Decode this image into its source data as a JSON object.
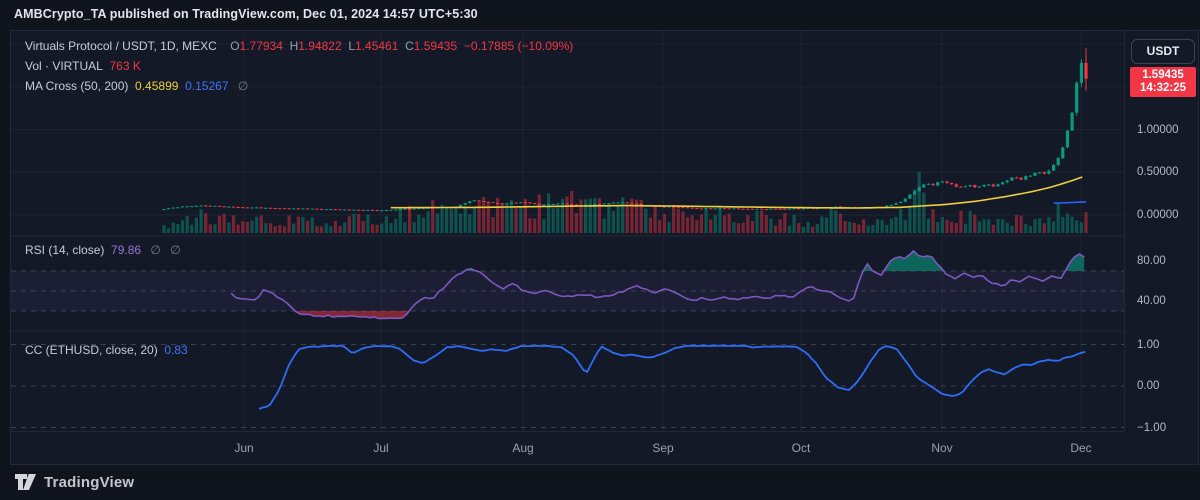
{
  "header": {
    "attribution": "AMBCrypto_TA published on TradingView.com, Dec 01, 2024 14:57 UTC+5:30"
  },
  "footer": {
    "brand": "TradingView"
  },
  "chart": {
    "legend_main": {
      "title": "Virtuals Protocol / USDT, 1D, MEXC",
      "o_label": "O",
      "o_value": "1.77934",
      "h_label": "H",
      "h_value": "1.94822",
      "l_label": "L",
      "l_value": "1.45461",
      "c_label": "C",
      "c_value": "1.59435",
      "change": "−0.17885 (−10.09%)"
    },
    "legend_vol": {
      "label": "Vol · VIRTUAL",
      "value": "763 K"
    },
    "legend_ma": {
      "label": "MA Cross (50, 200)",
      "ma50": "0.45899",
      "ma200": "0.15267",
      "eye": "∅"
    },
    "legend_rsi": {
      "label": "RSI (14, close)",
      "value": "79.86",
      "eye1": "∅",
      "eye2": "∅"
    },
    "legend_cc": {
      "label": "CC (ETHUSD, close, 20)",
      "value": "0.83"
    },
    "price_axis": {
      "currency_button": "USDT",
      "last_price": "1.59435",
      "countdown": "14:32:25"
    },
    "colors": {
      "up": "#089981",
      "down": "#f23645",
      "ma50": "#efce3d",
      "ma200": "#2962ff",
      "rsi": "#7e57c2",
      "cc": "#2e6df6",
      "grid": "rgba(151,158,179,0.08)",
      "dash": "rgba(150,155,170,0.55)"
    }
  },
  "chart_data": [
    {
      "type": "candlestick",
      "title": "Virtuals Protocol / USDT, 1D, MEXC",
      "ohlc_last": {
        "open": 1.77934,
        "high": 1.94822,
        "low": 1.45461,
        "close": 1.59435
      },
      "change": -0.17885,
      "change_pct": -10.09,
      "volume_last": "763 K",
      "ma50_last": 0.45899,
      "ma200_last": 0.15267,
      "ylim": [
        0,
        2.35
      ],
      "y_ticks": [
        {
          "v": 1.0,
          "label": "1.00000"
        },
        {
          "v": 0.5,
          "label": "0.50000"
        },
        {
          "v": 0.0,
          "label": "0.00000"
        }
      ],
      "grid_levels": [
        0.0,
        0.5,
        1.0,
        1.5,
        2.0
      ],
      "x_months": [
        {
          "label": "Jun",
          "t": 0.0868
        },
        {
          "label": "Jul",
          "t": 0.2354
        },
        {
          "label": "Aug",
          "t": 0.3894
        },
        {
          "label": "Sep",
          "t": 0.5412
        },
        {
          "label": "Oct",
          "t": 0.6909
        },
        {
          "label": "Nov",
          "t": 0.8438
        },
        {
          "label": "Dec",
          "t": 0.9946
        }
      ],
      "close_keyframes": [
        [
          0,
          0.07
        ],
        [
          0.02,
          0.1
        ],
        [
          0.04,
          0.11
        ],
        [
          0.087,
          0.09
        ],
        [
          0.12,
          0.08
        ],
        [
          0.149,
          0.075
        ],
        [
          0.192,
          0.065
        ],
        [
          0.235,
          0.055
        ],
        [
          0.26,
          0.07
        ],
        [
          0.279,
          0.08
        ],
        [
          0.3,
          0.09
        ],
        [
          0.317,
          0.1
        ],
        [
          0.333,
          0.17
        ],
        [
          0.346,
          0.16
        ],
        [
          0.366,
          0.13
        ],
        [
          0.387,
          0.15
        ],
        [
          0.409,
          0.12
        ],
        [
          0.431,
          0.14
        ],
        [
          0.447,
          0.11
        ],
        [
          0.474,
          0.13
        ],
        [
          0.496,
          0.15
        ],
        [
          0.517,
          0.12
        ],
        [
          0.541,
          0.1
        ],
        [
          0.561,
          0.09
        ],
        [
          0.582,
          0.075
        ],
        [
          0.604,
          0.08
        ],
        [
          0.626,
          0.075
        ],
        [
          0.648,
          0.07
        ],
        [
          0.669,
          0.072
        ],
        [
          0.691,
          0.078
        ],
        [
          0.713,
          0.085
        ],
        [
          0.729,
          0.1
        ],
        [
          0.745,
          0.09
        ],
        [
          0.761,
          0.08
        ],
        [
          0.778,
          0.095
        ],
        [
          0.789,
          0.12
        ],
        [
          0.799,
          0.16
        ],
        [
          0.81,
          0.24
        ],
        [
          0.819,
          0.33
        ],
        [
          0.826,
          0.38
        ],
        [
          0.834,
          0.35
        ],
        [
          0.844,
          0.4
        ],
        [
          0.854,
          0.36
        ],
        [
          0.862,
          0.32
        ],
        [
          0.871,
          0.35
        ],
        [
          0.881,
          0.33
        ],
        [
          0.892,
          0.36
        ],
        [
          0.902,
          0.34
        ],
        [
          0.913,
          0.4
        ],
        [
          0.921,
          0.44
        ],
        [
          0.929,
          0.42
        ],
        [
          0.938,
          0.46
        ],
        [
          0.946,
          0.5
        ],
        [
          0.953,
          0.47
        ],
        [
          0.96,
          0.52
        ],
        [
          0.966,
          0.6
        ],
        [
          0.973,
          0.72
        ],
        [
          0.979,
          0.95
        ],
        [
          0.985,
          1.2
        ],
        [
          0.99,
          1.55
        ],
        [
          0.995,
          1.78
        ],
        [
          1,
          1.59435
        ]
      ],
      "ma50_keyframes": [
        [
          0.246,
          0.085
        ],
        [
          0.35,
          0.09
        ],
        [
          0.45,
          0.105
        ],
        [
          0.5,
          0.11
        ],
        [
          0.55,
          0.105
        ],
        [
          0.62,
          0.095
        ],
        [
          0.7,
          0.085
        ],
        [
          0.75,
          0.082
        ],
        [
          0.8,
          0.09
        ],
        [
          0.85,
          0.125
        ],
        [
          0.88,
          0.16
        ],
        [
          0.91,
          0.21
        ],
        [
          0.94,
          0.27
        ],
        [
          0.96,
          0.32
        ],
        [
          0.98,
          0.385
        ],
        [
          1,
          0.459
        ]
      ],
      "ma200_keyframes": [
        [
          0.965,
          0.138
        ],
        [
          1,
          0.153
        ]
      ],
      "volume_keyframes": [
        [
          0,
          0.12
        ],
        [
          0.02,
          0.32
        ],
        [
          0.05,
          0.3
        ],
        [
          0.1,
          0.25
        ],
        [
          0.15,
          0.22
        ],
        [
          0.2,
          0.25
        ],
        [
          0.23,
          0.3
        ],
        [
          0.26,
          0.35
        ],
        [
          0.3,
          0.5
        ],
        [
          0.34,
          0.55
        ],
        [
          0.37,
          0.42
        ],
        [
          0.4,
          0.5
        ],
        [
          0.44,
          0.55
        ],
        [
          0.48,
          0.45
        ],
        [
          0.5,
          0.5
        ],
        [
          0.53,
          0.45
        ],
        [
          0.56,
          0.4
        ],
        [
          0.6,
          0.35
        ],
        [
          0.63,
          0.3
        ],
        [
          0.66,
          0.28
        ],
        [
          0.7,
          0.22
        ],
        [
          0.73,
          0.35
        ],
        [
          0.76,
          0.2
        ],
        [
          0.79,
          0.25
        ],
        [
          0.81,
          0.45
        ],
        [
          0.819,
          1.0
        ],
        [
          0.83,
          0.45
        ],
        [
          0.85,
          0.35
        ],
        [
          0.87,
          0.3
        ],
        [
          0.89,
          0.25
        ],
        [
          0.91,
          0.22
        ],
        [
          0.93,
          0.28
        ],
        [
          0.95,
          0.2
        ],
        [
          0.965,
          0.25
        ],
        [
          0.975,
          0.55
        ],
        [
          0.985,
          0.6
        ],
        [
          0.99,
          0.35
        ],
        [
          1,
          0.3
        ]
      ]
    },
    {
      "type": "line",
      "title": "RSI (14, close)",
      "last_value": 79.86,
      "levels": [
        70,
        50,
        30
      ],
      "y_ticks": [
        {
          "v": 80,
          "label": "80.00"
        },
        {
          "v": 40,
          "label": "40.00"
        }
      ],
      "overbought": 70,
      "oversold": 30,
      "points": [
        [
          0.073,
          48
        ],
        [
          0.08,
          42
        ],
        [
          0.101,
          42
        ],
        [
          0.107,
          52
        ],
        [
          0.116,
          48
        ],
        [
          0.131,
          40
        ],
        [
          0.143,
          30
        ],
        [
          0.151,
          26
        ],
        [
          0.181,
          25
        ],
        [
          0.214,
          24
        ],
        [
          0.252,
          22
        ],
        [
          0.26,
          23
        ],
        [
          0.272,
          36
        ],
        [
          0.284,
          44
        ],
        [
          0.291,
          42
        ],
        [
          0.31,
          60
        ],
        [
          0.325,
          70
        ],
        [
          0.333,
          73
        ],
        [
          0.341,
          70
        ],
        [
          0.348,
          65
        ],
        [
          0.359,
          57
        ],
        [
          0.368,
          53
        ],
        [
          0.379,
          57
        ],
        [
          0.39,
          50
        ],
        [
          0.401,
          47
        ],
        [
          0.413,
          51
        ],
        [
          0.424,
          46
        ],
        [
          0.439,
          44
        ],
        [
          0.454,
          47
        ],
        [
          0.47,
          44
        ],
        [
          0.485,
          46
        ],
        [
          0.5,
          50
        ],
        [
          0.515,
          55
        ],
        [
          0.53,
          48
        ],
        [
          0.546,
          52
        ],
        [
          0.561,
          45
        ],
        [
          0.576,
          40
        ],
        [
          0.583,
          43
        ],
        [
          0.591,
          40
        ],
        [
          0.606,
          44
        ],
        [
          0.621,
          42
        ],
        [
          0.637,
          44
        ],
        [
          0.652,
          43
        ],
        [
          0.667,
          45
        ],
        [
          0.682,
          44
        ],
        [
          0.694,
          52
        ],
        [
          0.702,
          55
        ],
        [
          0.713,
          50
        ],
        [
          0.724,
          48
        ],
        [
          0.736,
          42
        ],
        [
          0.747,
          40
        ],
        [
          0.752,
          55
        ],
        [
          0.762,
          78
        ],
        [
          0.771,
          68
        ],
        [
          0.778,
          65
        ],
        [
          0.788,
          80
        ],
        [
          0.797,
          85
        ],
        [
          0.805,
          82
        ],
        [
          0.812,
          90
        ],
        [
          0.821,
          84
        ],
        [
          0.83,
          86
        ],
        [
          0.838,
          78
        ],
        [
          0.85,
          65
        ],
        [
          0.859,
          62
        ],
        [
          0.868,
          68
        ],
        [
          0.876,
          63
        ],
        [
          0.885,
          67
        ],
        [
          0.894,
          60
        ],
        [
          0.902,
          57
        ],
        [
          0.911,
          55
        ],
        [
          0.92,
          62
        ],
        [
          0.928,
          60
        ],
        [
          0.937,
          65
        ],
        [
          0.946,
          63
        ],
        [
          0.954,
          60
        ],
        [
          0.963,
          65
        ],
        [
          0.972,
          62
        ],
        [
          0.98,
          75
        ],
        [
          0.989,
          86
        ],
        [
          0.996,
          88
        ],
        [
          1,
          79.86
        ]
      ]
    },
    {
      "type": "line",
      "title": "CC (ETHUSD, close, 20)",
      "last_value": 0.83,
      "levels": [
        1.0,
        0.0,
        -1.0
      ],
      "y_ticks": [
        {
          "v": 1,
          "label": "1.00"
        },
        {
          "v": 0,
          "label": "0.00"
        },
        {
          "v": -1,
          "label": "−1.00"
        }
      ],
      "points": [
        [
          0.103,
          -0.55
        ],
        [
          0.114,
          -0.48
        ],
        [
          0.125,
          -0.1
        ],
        [
          0.136,
          0.55
        ],
        [
          0.146,
          0.88
        ],
        [
          0.157,
          0.94
        ],
        [
          0.181,
          0.96
        ],
        [
          0.194,
          0.97
        ],
        [
          0.205,
          0.78
        ],
        [
          0.216,
          0.92
        ],
        [
          0.227,
          0.96
        ],
        [
          0.246,
          0.96
        ],
        [
          0.257,
          0.88
        ],
        [
          0.27,
          0.62
        ],
        [
          0.281,
          0.55
        ],
        [
          0.294,
          0.72
        ],
        [
          0.307,
          0.93
        ],
        [
          0.32,
          0.96
        ],
        [
          0.335,
          0.88
        ],
        [
          0.344,
          0.84
        ],
        [
          0.355,
          0.88
        ],
        [
          0.371,
          0.85
        ],
        [
          0.387,
          0.96
        ],
        [
          0.414,
          0.97
        ],
        [
          0.431,
          0.93
        ],
        [
          0.444,
          0.75
        ],
        [
          0.454,
          0.42
        ],
        [
          0.458,
          0.3
        ],
        [
          0.465,
          0.6
        ],
        [
          0.474,
          0.96
        ],
        [
          0.487,
          0.8
        ],
        [
          0.498,
          0.72
        ],
        [
          0.506,
          0.77
        ],
        [
          0.517,
          0.72
        ],
        [
          0.528,
          0.68
        ],
        [
          0.541,
          0.78
        ],
        [
          0.555,
          0.92
        ],
        [
          0.569,
          0.97
        ],
        [
          0.631,
          0.97
        ],
        [
          0.639,
          0.93
        ],
        [
          0.65,
          0.95
        ],
        [
          0.685,
          0.95
        ],
        [
          0.696,
          0.82
        ],
        [
          0.707,
          0.55
        ],
        [
          0.718,
          0.2
        ],
        [
          0.732,
          -0.05
        ],
        [
          0.743,
          -0.1
        ],
        [
          0.754,
          0.15
        ],
        [
          0.765,
          0.55
        ],
        [
          0.776,
          0.9
        ],
        [
          0.784,
          0.97
        ],
        [
          0.795,
          0.88
        ],
        [
          0.806,
          0.55
        ],
        [
          0.817,
          0.2
        ],
        [
          0.83,
          0.02
        ],
        [
          0.843,
          -0.18
        ],
        [
          0.854,
          -0.25
        ],
        [
          0.865,
          -0.18
        ],
        [
          0.875,
          0.1
        ],
        [
          0.886,
          0.33
        ],
        [
          0.895,
          0.4
        ],
        [
          0.904,
          0.32
        ],
        [
          0.912,
          0.28
        ],
        [
          0.921,
          0.42
        ],
        [
          0.932,
          0.53
        ],
        [
          0.94,
          0.5
        ],
        [
          0.951,
          0.6
        ],
        [
          0.96,
          0.63
        ],
        [
          0.969,
          0.6
        ],
        [
          0.977,
          0.68
        ],
        [
          0.986,
          0.72
        ],
        [
          0.992,
          0.78
        ],
        [
          1,
          0.83
        ]
      ]
    }
  ]
}
